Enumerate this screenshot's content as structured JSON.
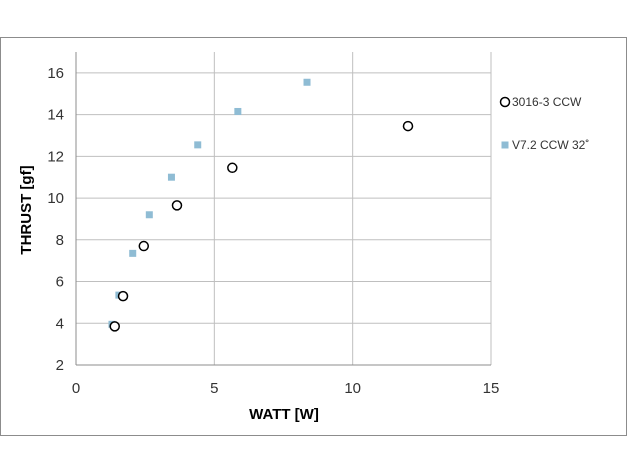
{
  "chart_data": {
    "type": "scatter",
    "xlabel": "WATT [W]",
    "ylabel": "THRUST [gf]",
    "xlim": [
      0,
      15
    ],
    "ylim": [
      2,
      17
    ],
    "xticks": [
      0,
      5,
      10,
      15
    ],
    "yticks": [
      2,
      4,
      6,
      8,
      10,
      12,
      14,
      16
    ],
    "grid": true,
    "legend_position": "right",
    "series": [
      {
        "name": "3016-3 CCW",
        "marker": "open-circle",
        "color": "#000000",
        "points": [
          {
            "x": 1.4,
            "y": 3.85
          },
          {
            "x": 1.7,
            "y": 5.3
          },
          {
            "x": 2.45,
            "y": 7.7
          },
          {
            "x": 3.65,
            "y": 9.65
          },
          {
            "x": 5.65,
            "y": 11.45
          },
          {
            "x": 12.0,
            "y": 13.45
          }
        ]
      },
      {
        "name": "V7.2 CCW 32˚",
        "marker": "square",
        "color": "#8fbcd4",
        "points": [
          {
            "x": 1.3,
            "y": 3.95
          },
          {
            "x": 1.55,
            "y": 5.35
          },
          {
            "x": 2.05,
            "y": 7.35
          },
          {
            "x": 2.65,
            "y": 9.2
          },
          {
            "x": 3.45,
            "y": 11.0
          },
          {
            "x": 4.4,
            "y": 12.55
          },
          {
            "x": 5.85,
            "y": 14.15
          },
          {
            "x": 8.35,
            "y": 15.55
          }
        ]
      }
    ]
  }
}
